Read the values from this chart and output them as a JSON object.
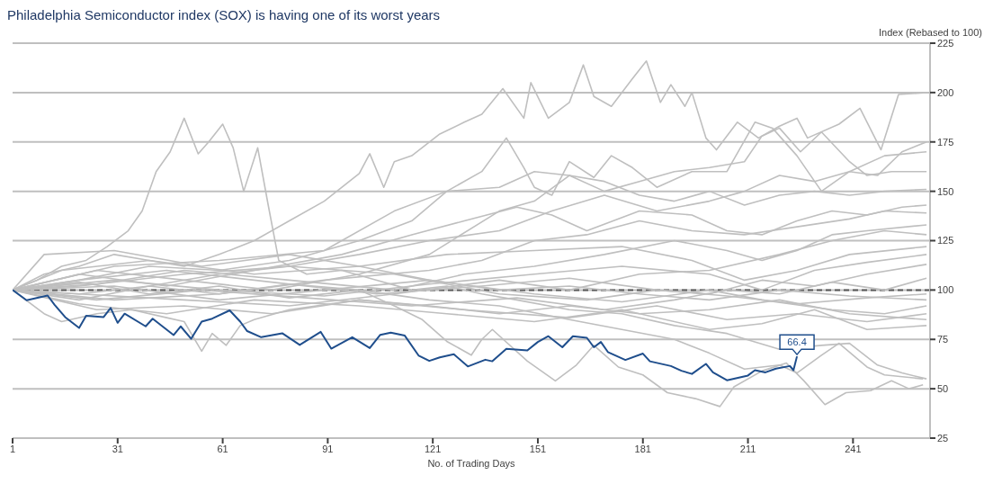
{
  "chart_data": {
    "type": "line",
    "title": "Philadelphia Semiconductor index (SOX) is having one of its worst years",
    "xlabel": "No. of Trading Days",
    "ylabel": "Index (Rebased to 100)",
    "xlim": [
      1,
      263
    ],
    "xticks": [
      1,
      31,
      61,
      91,
      121,
      151,
      181,
      211,
      241
    ],
    "ylim": [
      25,
      225
    ],
    "yticks": [
      25,
      50,
      75,
      100,
      125,
      150,
      175,
      200,
      225
    ],
    "grid": "y",
    "marker": "none",
    "line_style": "solid",
    "ref_lines": [
      {
        "axis": "y",
        "value": 100,
        "color": "#595959",
        "line_style": "dashed"
      }
    ],
    "series": [
      {
        "color": "#bfbfbf",
        "x": [
          1,
          10,
          20,
          30,
          40,
          50,
          60,
          70,
          80,
          90,
          100,
          103,
          107,
          110,
          115,
          123,
          130,
          135,
          141,
          147,
          149,
          154,
          160,
          164,
          167,
          172,
          178,
          182,
          186,
          189,
          193,
          195,
          199,
          202,
          208,
          214,
          220,
          225,
          228,
          237,
          243,
          249,
          254,
          262
        ],
        "values": [
          100,
          108,
          112,
          118,
          115,
          112,
          118,
          125,
          135,
          145,
          159,
          169,
          152,
          165,
          168,
          179,
          185,
          189,
          202,
          187,
          205,
          187,
          195,
          214,
          198,
          193,
          207,
          216,
          195,
          204,
          193,
          200,
          177,
          171,
          185,
          177,
          183,
          187,
          177,
          184,
          192,
          171,
          199,
          200
        ]
      },
      {
        "color": "#bfbfbf",
        "x": [
          1,
          8,
          15,
          22,
          28,
          34,
          38,
          42,
          46,
          50,
          54,
          57,
          61,
          64,
          67,
          71,
          74,
          77,
          85,
          95,
          105,
          115,
          125,
          135,
          145,
          160,
          175,
          190,
          205,
          220,
          232,
          240,
          248,
          255,
          262
        ],
        "values": [
          100,
          105,
          112,
          115,
          122,
          130,
          140,
          160,
          170,
          187,
          169,
          175,
          184,
          172,
          150,
          172,
          143,
          115,
          108,
          110,
          105,
          100,
          102,
          98,
          95,
          90,
          88,
          82,
          78,
          70,
          72,
          73,
          62,
          58,
          55
        ]
      },
      {
        "color": "#bfbfbf",
        "x": [
          1,
          20,
          40,
          60,
          80,
          100,
          110,
          118,
          125,
          132,
          135,
          138,
          148,
          156,
          162,
          167,
          174,
          181,
          188,
          196,
          203,
          207,
          215,
          222,
          227,
          233,
          239,
          246,
          252,
          257,
          261
        ],
        "values": [
          100,
          98,
          102,
          98,
          103,
          100,
          92,
          85,
          74,
          67,
          75,
          80,
          64,
          54,
          62,
          72,
          61,
          57,
          48,
          45,
          41,
          51,
          59,
          63,
          54,
          42,
          48,
          49,
          54,
          50,
          52
        ]
      },
      {
        "color": "#bfbfbf",
        "x": [
          1,
          20,
          40,
          60,
          80,
          100,
          120,
          140,
          160,
          175,
          190,
          200,
          210,
          220,
          225,
          232,
          237,
          245,
          250,
          261
        ],
        "values": [
          100,
          104,
          98,
          102,
          96,
          100,
          95,
          92,
          85,
          80,
          75,
          68,
          60,
          62,
          58,
          67,
          73,
          61,
          57,
          55
        ]
      },
      {
        "color": "#bfbfbf",
        "x": [
          1,
          10,
          15,
          25,
          35,
          45,
          50,
          55,
          58,
          62,
          66,
          70,
          80,
          100,
          120,
          140,
          160,
          180,
          200,
          220,
          240,
          262
        ],
        "values": [
          100,
          88,
          84,
          88,
          90,
          86,
          84,
          69,
          78,
          72,
          82,
          85,
          90,
          95,
          92,
          88,
          92,
          88,
          90,
          95,
          88,
          85
        ]
      },
      {
        "color": "#bfbfbf",
        "x": [
          1,
          20,
          40,
          60,
          80,
          100,
          115,
          125,
          135,
          142,
          147,
          150,
          155,
          160,
          167,
          172,
          178,
          185,
          195,
          205,
          213,
          218,
          225,
          232,
          240,
          248,
          255,
          262
        ],
        "values": [
          100,
          105,
          112,
          110,
          115,
          125,
          135,
          150,
          160,
          177,
          162,
          152,
          148,
          165,
          157,
          168,
          162,
          152,
          160,
          160,
          185,
          182,
          168,
          150,
          160,
          158,
          170,
          175
        ]
      },
      {
        "color": "#bfbfbf",
        "x": [
          1,
          20,
          40,
          60,
          80,
          100,
          120,
          140,
          155,
          170,
          185,
          200,
          210,
          220,
          230,
          240,
          250,
          262
        ],
        "values": [
          100,
          95,
          102,
          108,
          112,
          118,
          125,
          130,
          140,
          148,
          140,
          145,
          150,
          158,
          155,
          160,
          168,
          170
        ]
      },
      {
        "color": "#bfbfbf",
        "x": [
          1,
          25,
          50,
          75,
          100,
          120,
          140,
          150,
          160,
          170,
          180,
          190,
          200,
          210,
          215,
          220,
          226,
          232,
          240,
          245,
          252,
          262
        ],
        "values": [
          100,
          110,
          105,
          100,
          108,
          118,
          140,
          145,
          158,
          150,
          155,
          160,
          162,
          165,
          178,
          182,
          170,
          180,
          165,
          158,
          160,
          160
        ]
      },
      {
        "color": "#bfbfbf",
        "x": [
          1,
          30,
          60,
          90,
          110,
          125,
          140,
          150,
          160,
          170,
          180,
          190,
          200,
          210,
          220,
          230,
          240,
          250,
          262
        ],
        "values": [
          100,
          112,
          115,
          120,
          140,
          150,
          152,
          160,
          158,
          155,
          148,
          145,
          150,
          143,
          148,
          150,
          148,
          150,
          151
        ]
      },
      {
        "color": "#bfbfbf",
        "x": [
          1,
          20,
          45,
          70,
          95,
          115,
          130,
          145,
          155,
          165,
          180,
          195,
          205,
          215,
          225,
          235,
          245,
          255,
          262
        ],
        "values": [
          100,
          108,
          102,
          110,
          118,
          128,
          135,
          142,
          138,
          130,
          140,
          138,
          130,
          128,
          135,
          140,
          138,
          142,
          143
        ]
      },
      {
        "color": "#bfbfbf",
        "x": [
          1,
          30,
          60,
          90,
          120,
          135,
          150,
          165,
          180,
          195,
          210,
          225,
          240,
          250,
          262
        ],
        "values": [
          100,
          95,
          98,
          105,
          110,
          115,
          125,
          128,
          135,
          130,
          128,
          132,
          136,
          140,
          139
        ]
      },
      {
        "color": "#bfbfbf",
        "x": [
          1,
          25,
          50,
          80,
          110,
          130,
          150,
          170,
          190,
          205,
          215,
          225,
          235,
          245,
          262
        ],
        "values": [
          100,
          103,
          110,
          105,
          100,
          108,
          112,
          118,
          125,
          120,
          115,
          120,
          128,
          130,
          133
        ]
      },
      {
        "color": "#bfbfbf",
        "x": [
          1,
          20,
          50,
          80,
          110,
          140,
          160,
          180,
          200,
          220,
          235,
          250,
          262
        ],
        "values": [
          100,
          98,
          95,
          92,
          98,
          105,
          100,
          108,
          110,
          118,
          125,
          130,
          128
        ]
      },
      {
        "color": "#bfbfbf",
        "x": [
          1,
          15,
          40,
          70,
          100,
          125,
          150,
          175,
          195,
          210,
          225,
          240,
          262
        ],
        "values": [
          100,
          110,
          115,
          108,
          112,
          118,
          120,
          122,
          115,
          105,
          110,
          118,
          122
        ]
      },
      {
        "color": "#bfbfbf",
        "x": [
          1,
          30,
          60,
          90,
          120,
          150,
          175,
          200,
          215,
          230,
          245,
          262
        ],
        "values": [
          100,
          105,
          100,
          97,
          103,
          108,
          112,
          108,
          100,
          110,
          114,
          118
        ]
      },
      {
        "color": "#bfbfbf",
        "x": [
          1,
          20,
          50,
          80,
          110,
          140,
          165,
          185,
          200,
          215,
          230,
          245,
          262
        ],
        "values": [
          100,
          102,
          108,
          112,
          108,
          98,
          95,
          100,
          98,
          105,
          102,
          108,
          113
        ]
      },
      {
        "color": "#bfbfbf",
        "x": [
          1,
          25,
          55,
          85,
          115,
          145,
          170,
          190,
          205,
          220,
          235,
          250,
          262
        ],
        "values": [
          100,
          95,
          100,
          96,
          92,
          96,
          90,
          95,
          100,
          98,
          104,
          100,
          106
        ]
      },
      {
        "color": "#bfbfbf",
        "x": [
          1,
          20,
          45,
          75,
          105,
          135,
          160,
          185,
          205,
          225,
          245,
          262
        ],
        "values": [
          100,
          105,
          110,
          104,
          98,
          102,
          106,
          100,
          97,
          93,
          96,
          98
        ]
      },
      {
        "color": "#bfbfbf",
        "x": [
          1,
          30,
          60,
          90,
          120,
          150,
          175,
          200,
          215,
          235,
          250,
          262
        ],
        "values": [
          100,
          102,
          95,
          100,
          105,
          98,
          94,
          100,
          95,
          90,
          88,
          92
        ]
      },
      {
        "color": "#bfbfbf",
        "x": [
          1,
          25,
          50,
          75,
          100,
          130,
          160,
          185,
          205,
          225,
          245,
          262
        ],
        "values": [
          100,
          90,
          92,
          88,
          95,
          90,
          86,
          92,
          85,
          88,
          84,
          88
        ]
      },
      {
        "color": "#bfbfbf",
        "x": [
          1,
          20,
          45,
          70,
          100,
          125,
          150,
          175,
          200,
          215,
          230,
          245,
          262
        ],
        "values": [
          100,
          93,
          88,
          95,
          92,
          88,
          84,
          90,
          80,
          83,
          90,
          80,
          82
        ]
      },
      {
        "color": "#bfbfbf",
        "x": [
          1,
          10,
          30,
          55,
          80,
          100,
          120,
          140,
          160,
          180,
          200,
          220,
          240,
          262
        ],
        "values": [
          100,
          118,
          120,
          112,
          118,
          112,
          105,
          100,
          102,
          98,
          95,
          100,
          97,
          95
        ]
      },
      {
        "color": "#1f4e8c",
        "x": [
          1,
          5,
          11,
          13,
          16,
          20,
          22,
          27,
          29,
          31,
          33,
          39,
          41,
          47,
          49,
          52,
          55,
          58,
          63,
          66,
          68,
          72,
          78,
          83,
          89,
          92,
          98,
          103,
          106,
          109,
          113,
          117,
          120,
          123,
          127,
          131,
          136,
          138,
          142,
          148,
          151,
          154,
          158,
          161,
          165,
          167,
          169,
          171,
          176,
          181,
          183,
          189,
          192,
          195,
          199,
          201,
          205,
          207,
          211,
          213,
          216,
          219,
          223,
          224,
          225
        ],
        "values": [
          100,
          94.8,
          97.2,
          92.5,
          86.3,
          80.8,
          87,
          86.3,
          90.9,
          83.4,
          88,
          81.6,
          85.5,
          77.2,
          81.6,
          75.3,
          84,
          85.5,
          89.7,
          84,
          79.2,
          76.1,
          78.1,
          72.2,
          78.8,
          70.3,
          76.1,
          70.6,
          77.3,
          78.4,
          76.9,
          66.7,
          64.1,
          65.9,
          67.5,
          61.3,
          64.7,
          63.9,
          70.2,
          69.4,
          73.7,
          76.6,
          71,
          76.6,
          75.8,
          71,
          73.7,
          68.6,
          64.6,
          67.8,
          63.9,
          61.5,
          59.1,
          57.5,
          62.6,
          58.3,
          54.3,
          55.1,
          56.7,
          59.4,
          58.3,
          60.2,
          61.5,
          59.4,
          66.4
        ],
        "value_labels": [
          null,
          null,
          null,
          null,
          null,
          null,
          null,
          null,
          null,
          null,
          null,
          null,
          null,
          null,
          null,
          null,
          null,
          null,
          null,
          null,
          null,
          null,
          null,
          null,
          null,
          null,
          null,
          null,
          null,
          null,
          null,
          null,
          null,
          null,
          null,
          null,
          null,
          null,
          null,
          null,
          null,
          null,
          null,
          null,
          null,
          null,
          null,
          null,
          null,
          null,
          null,
          null,
          null,
          null,
          null,
          null,
          null,
          null,
          null,
          null,
          null,
          null,
          null,
          null,
          "66.4"
        ]
      }
    ]
  }
}
